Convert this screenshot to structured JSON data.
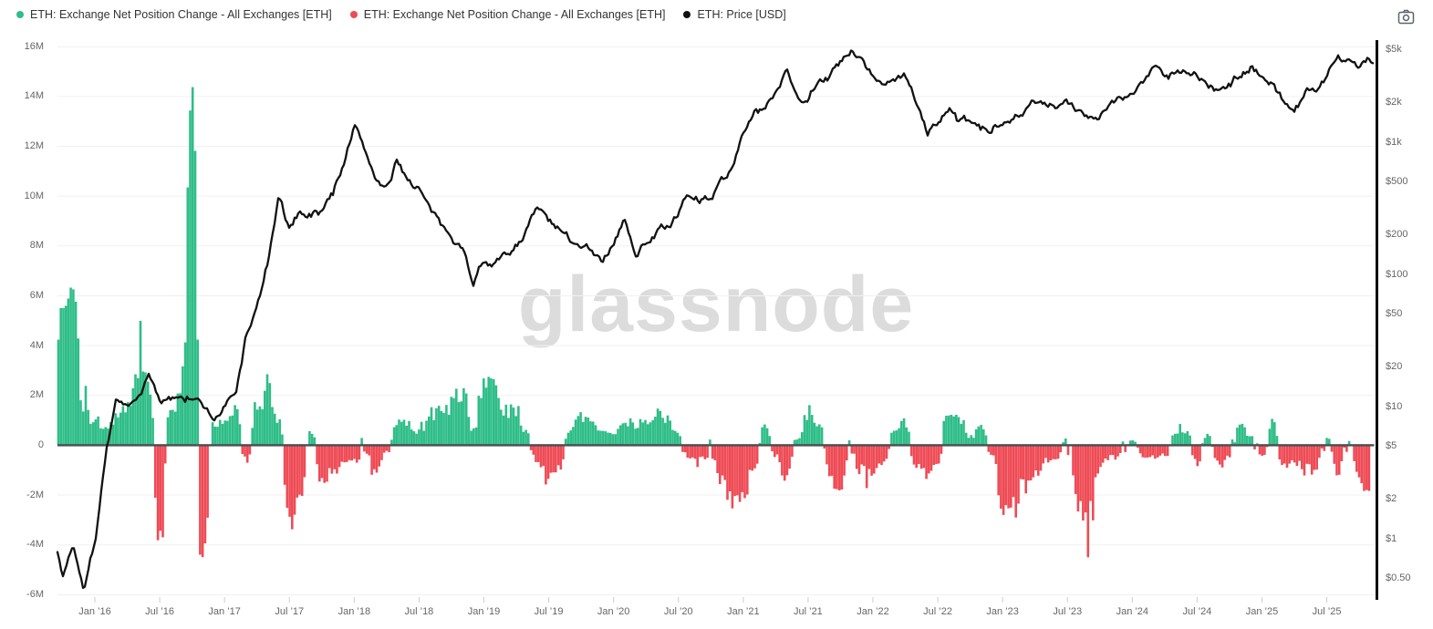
{
  "legend": [
    {
      "label": "ETH: Exchange Net Position Change - All Exchanges [ETH]",
      "color": "#2fbd88"
    },
    {
      "label": "ETH: Exchange Net Position Change - All Exchanges [ETH]",
      "color": "#ee4b55"
    },
    {
      "label": "ETH: Price [USD]",
      "color": "#111111"
    }
  ],
  "toolbar": {
    "camera_icon": "camera-screenshot"
  },
  "watermark": "glassnode",
  "chart_data": {
    "type": "mixed",
    "description": "Green/red bars = ETH exchange net position change (millions of ETH, left linear axis); black line = ETH price in USD (right log axis). Values estimated from pixels, monthly resolution.",
    "x": {
      "ticks": [
        "Jan ’16",
        "Jul ’16",
        "Jan ’17",
        "Jul ’17",
        "Jan ’18",
        "Jul ’18",
        "Jan ’19",
        "Jul ’19",
        "Jan ’20",
        "Jul ’20",
        "Jan ’21",
        "Jul ’21",
        "Jan ’22",
        "Jul ’22",
        "Jan ’23",
        "Jul ’23",
        "Jan ’24",
        "Jul ’24",
        "Jan ’25",
        "Jul ’25"
      ]
    },
    "y_left": {
      "ticks": [
        "16M",
        "14M",
        "12M",
        "10M",
        "8M",
        "6M",
        "4M",
        "2M",
        "0",
        "-2M",
        "-4M",
        "-6M"
      ],
      "tick_values_millions": [
        16,
        14,
        12,
        10,
        8,
        6,
        4,
        2,
        0,
        -2,
        -4,
        -6
      ],
      "scale": "linear"
    },
    "y_right": {
      "ticks": [
        "$5k",
        "$2k",
        "$1k",
        "$500",
        "$200",
        "$100",
        "$50",
        "$20",
        "$10",
        "$5",
        "$2",
        "$1",
        "$0.50"
      ],
      "tick_values": [
        5000,
        2000,
        1000,
        500,
        200,
        100,
        50,
        20,
        10,
        5,
        2,
        1,
        0.5
      ],
      "scale": "log"
    },
    "series": [
      {
        "name": "ETH: Exchange Net Position Change - All Exchanges [ETH]",
        "type": "bar",
        "axis": "left",
        "unit": "million ETH",
        "positive_color": "#2fbd88",
        "negative_color": "#ee4b55",
        "points": [
          [
            "2015-09",
            0.3
          ],
          [
            "2015-10",
            5.6
          ],
          [
            "2015-11",
            6.3
          ],
          [
            "2015-12",
            1.6
          ],
          [
            "2016-01",
            1.0
          ],
          [
            "2016-02",
            0.8
          ],
          [
            "2016-03",
            1.1
          ],
          [
            "2016-04",
            1.4
          ],
          [
            "2016-05",
            3.2
          ],
          [
            "2016-06",
            2.6
          ],
          [
            "2016-07",
            -3.6
          ],
          [
            "2016-08",
            1.5
          ],
          [
            "2016-09",
            2.0
          ],
          [
            "2016-10",
            14.2
          ],
          [
            "2016-11",
            -4.4
          ],
          [
            "2016-12",
            0.8
          ],
          [
            "2017-01",
            1.0
          ],
          [
            "2017-02",
            1.3
          ],
          [
            "2017-03",
            -0.6
          ],
          [
            "2017-04",
            1.2
          ],
          [
            "2017-05",
            2.3
          ],
          [
            "2017-06",
            1.0
          ],
          [
            "2017-07",
            -2.9
          ],
          [
            "2017-08",
            -2.4
          ],
          [
            "2017-09",
            0.6
          ],
          [
            "2017-10",
            -1.3
          ],
          [
            "2017-11",
            -1.2
          ],
          [
            "2017-12",
            -0.6
          ],
          [
            "2018-01",
            -0.6
          ],
          [
            "2018-02",
            -0.3
          ],
          [
            "2018-03",
            -0.9
          ],
          [
            "2018-04",
            -0.3
          ],
          [
            "2018-05",
            0.9
          ],
          [
            "2018-06",
            0.8
          ],
          [
            "2018-07",
            0.6
          ],
          [
            "2018-08",
            1.0
          ],
          [
            "2018-09",
            1.3
          ],
          [
            "2018-10",
            1.6
          ],
          [
            "2018-11",
            2.2
          ],
          [
            "2018-12",
            0.7
          ],
          [
            "2019-01",
            2.4
          ],
          [
            "2019-02",
            2.5
          ],
          [
            "2019-03",
            1.4
          ],
          [
            "2019-04",
            1.3
          ],
          [
            "2019-05",
            0.5
          ],
          [
            "2019-06",
            -0.7
          ],
          [
            "2019-07",
            -1.4
          ],
          [
            "2019-08",
            -0.8
          ],
          [
            "2019-09",
            0.7
          ],
          [
            "2019-10",
            1.2
          ],
          [
            "2019-11",
            0.9
          ],
          [
            "2019-12",
            0.5
          ],
          [
            "2020-01",
            0.4
          ],
          [
            "2020-02",
            0.9
          ],
          [
            "2020-03",
            0.8
          ],
          [
            "2020-04",
            1.0
          ],
          [
            "2020-05",
            1.3
          ],
          [
            "2020-06",
            1.0
          ],
          [
            "2020-07",
            0.4
          ],
          [
            "2020-08",
            -0.5
          ],
          [
            "2020-09",
            -0.6
          ],
          [
            "2020-10",
            -0.4
          ],
          [
            "2020-11",
            -1.3
          ],
          [
            "2020-12",
            -2.1
          ],
          [
            "2021-01",
            -1.9
          ],
          [
            "2021-02",
            -0.9
          ],
          [
            "2021-03",
            0.8
          ],
          [
            "2021-04",
            -0.4
          ],
          [
            "2021-05",
            -1.2
          ],
          [
            "2021-06",
            0.3
          ],
          [
            "2021-07",
            1.3
          ],
          [
            "2021-08",
            0.9
          ],
          [
            "2021-09",
            -1.1
          ],
          [
            "2021-10",
            -1.5
          ],
          [
            "2021-11",
            -0.4
          ],
          [
            "2021-12",
            -1.0
          ],
          [
            "2022-01",
            -1.2
          ],
          [
            "2022-02",
            -0.8
          ],
          [
            "2022-03",
            0.6
          ],
          [
            "2022-04",
            0.9
          ],
          [
            "2022-05",
            -0.9
          ],
          [
            "2022-06",
            -1.1
          ],
          [
            "2022-07",
            -0.6
          ],
          [
            "2022-08",
            1.4
          ],
          [
            "2022-09",
            1.1
          ],
          [
            "2022-10",
            0.3
          ],
          [
            "2022-11",
            0.9
          ],
          [
            "2022-12",
            -0.4
          ],
          [
            "2023-01",
            -2.3
          ],
          [
            "2023-02",
            -2.7
          ],
          [
            "2023-03",
            -1.6
          ],
          [
            "2023-04",
            -1.2
          ],
          [
            "2023-05",
            -0.6
          ],
          [
            "2023-06",
            -0.5
          ],
          [
            "2023-07",
            0.3
          ],
          [
            "2023-08",
            -2.4
          ],
          [
            "2023-09",
            -2.8
          ],
          [
            "2023-10",
            -0.9
          ],
          [
            "2023-11",
            -0.5
          ],
          [
            "2023-12",
            -0.4
          ],
          [
            "2024-01",
            0.2
          ],
          [
            "2024-02",
            -0.4
          ],
          [
            "2024-03",
            -0.5
          ],
          [
            "2024-04",
            -0.4
          ],
          [
            "2024-05",
            0.5
          ],
          [
            "2024-06",
            0.6
          ],
          [
            "2024-07",
            -0.7
          ],
          [
            "2024-08",
            0.4
          ],
          [
            "2024-09",
            -0.8
          ],
          [
            "2024-10",
            -0.5
          ],
          [
            "2024-11",
            0.9
          ],
          [
            "2024-12",
            0.4
          ],
          [
            "2025-01",
            -0.4
          ],
          [
            "2025-02",
            0.8
          ],
          [
            "2025-03",
            -0.9
          ],
          [
            "2025-04",
            -0.7
          ],
          [
            "2025-05",
            -1.0
          ],
          [
            "2025-06",
            -0.8
          ],
          [
            "2025-07",
            0.3
          ],
          [
            "2025-08",
            -1.1
          ],
          [
            "2025-09",
            0.2
          ],
          [
            "2025-10",
            -1.2
          ],
          [
            "2025-11",
            -2.3
          ]
        ]
      },
      {
        "name": "ETH: Price [USD]",
        "type": "line",
        "axis": "right",
        "unit": "USD",
        "color": "#111111",
        "scale": "log",
        "points": [
          [
            "2015-09",
            1.5
          ],
          [
            "2015-10",
            0.5
          ],
          [
            "2015-11",
            0.95
          ],
          [
            "2015-12",
            0.45
          ],
          [
            "2016-01",
            0.95
          ],
          [
            "2016-02",
            4.5
          ],
          [
            "2016-03",
            12
          ],
          [
            "2016-04",
            9
          ],
          [
            "2016-05",
            11
          ],
          [
            "2016-06",
            17
          ],
          [
            "2016-07",
            11.5
          ],
          [
            "2016-08",
            11
          ],
          [
            "2016-09",
            12.5
          ],
          [
            "2016-10",
            12
          ],
          [
            "2016-11",
            10
          ],
          [
            "2016-12",
            8
          ],
          [
            "2017-01",
            10
          ],
          [
            "2017-02",
            12
          ],
          [
            "2017-03",
            35
          ],
          [
            "2017-04",
            55
          ],
          [
            "2017-05",
            120
          ],
          [
            "2017-06",
            360
          ],
          [
            "2017-07",
            210
          ],
          [
            "2017-08",
            300
          ],
          [
            "2017-09",
            290
          ],
          [
            "2017-10",
            300
          ],
          [
            "2017-11",
            400
          ],
          [
            "2017-12",
            700
          ],
          [
            "2018-01",
            1350
          ],
          [
            "2018-02",
            850
          ],
          [
            "2018-03",
            550
          ],
          [
            "2018-04",
            420
          ],
          [
            "2018-05",
            700
          ],
          [
            "2018-06",
            520
          ],
          [
            "2018-07",
            460
          ],
          [
            "2018-08",
            300
          ],
          [
            "2018-09",
            220
          ],
          [
            "2018-10",
            210
          ],
          [
            "2018-11",
            160
          ],
          [
            "2018-12",
            90
          ],
          [
            "2019-01",
            130
          ],
          [
            "2019-02",
            130
          ],
          [
            "2019-03",
            135
          ],
          [
            "2019-04",
            165
          ],
          [
            "2019-05",
            230
          ],
          [
            "2019-06",
            310
          ],
          [
            "2019-07",
            250
          ],
          [
            "2019-08",
            200
          ],
          [
            "2019-09",
            180
          ],
          [
            "2019-10",
            180
          ],
          [
            "2019-11",
            160
          ],
          [
            "2019-12",
            130
          ],
          [
            "2020-01",
            160
          ],
          [
            "2020-02",
            260
          ],
          [
            "2020-03",
            135
          ],
          [
            "2020-04",
            180
          ],
          [
            "2020-05",
            210
          ],
          [
            "2020-06",
            230
          ],
          [
            "2020-07",
            280
          ],
          [
            "2020-08",
            400
          ],
          [
            "2020-09",
            360
          ],
          [
            "2020-10",
            390
          ],
          [
            "2020-11",
            500
          ],
          [
            "2020-12",
            640
          ],
          [
            "2021-01",
            1250
          ],
          [
            "2021-02",
            1650
          ],
          [
            "2021-03",
            1800
          ],
          [
            "2021-04",
            2400
          ],
          [
            "2021-05",
            3800
          ],
          [
            "2021-06",
            2300
          ],
          [
            "2021-07",
            2200
          ],
          [
            "2021-08",
            3100
          ],
          [
            "2021-09",
            3200
          ],
          [
            "2021-10",
            4000
          ],
          [
            "2021-11",
            4650
          ],
          [
            "2021-12",
            4000
          ],
          [
            "2022-01",
            3000
          ],
          [
            "2022-02",
            2800
          ],
          [
            "2022-03",
            3000
          ],
          [
            "2022-04",
            3000
          ],
          [
            "2022-05",
            2100
          ],
          [
            "2022-06",
            1150
          ],
          [
            "2022-07",
            1400
          ],
          [
            "2022-08",
            1850
          ],
          [
            "2022-09",
            1400
          ],
          [
            "2022-10",
            1350
          ],
          [
            "2022-11",
            1200
          ],
          [
            "2022-12",
            1200
          ],
          [
            "2023-01",
            1550
          ],
          [
            "2023-02",
            1650
          ],
          [
            "2023-03",
            1750
          ],
          [
            "2023-04",
            2000
          ],
          [
            "2023-05",
            1850
          ],
          [
            "2023-06",
            1800
          ],
          [
            "2023-07",
            1900
          ],
          [
            "2023-08",
            1700
          ],
          [
            "2023-09",
            1650
          ],
          [
            "2023-10",
            1700
          ],
          [
            "2023-11",
            2000
          ],
          [
            "2023-12",
            2300
          ],
          [
            "2024-01",
            2400
          ],
          [
            "2024-02",
            2900
          ],
          [
            "2024-03",
            3700
          ],
          [
            "2024-04",
            3200
          ],
          [
            "2024-05",
            3400
          ],
          [
            "2024-06",
            3500
          ],
          [
            "2024-07",
            3300
          ],
          [
            "2024-08",
            2700
          ],
          [
            "2024-09",
            2400
          ],
          [
            "2024-10",
            2550
          ],
          [
            "2024-11",
            3300
          ],
          [
            "2024-12",
            3800
          ],
          [
            "2025-01",
            3300
          ],
          [
            "2025-02",
            2700
          ],
          [
            "2025-03",
            2000
          ],
          [
            "2025-04",
            1700
          ],
          [
            "2025-05",
            2400
          ],
          [
            "2025-06",
            2500
          ],
          [
            "2025-07",
            3200
          ],
          [
            "2025-08",
            4600
          ],
          [
            "2025-09",
            4300
          ],
          [
            "2025-10",
            4000
          ],
          [
            "2025-11",
            4300
          ]
        ]
      }
    ],
    "colors": {
      "grid": "#f1f1f1",
      "zero_line": "#4a4e52",
      "right_axis_line": "#0c0c0c",
      "tick_mark": "#cdcdcd",
      "axis_text": "#666666",
      "watermark": "#dcdcdc"
    }
  }
}
